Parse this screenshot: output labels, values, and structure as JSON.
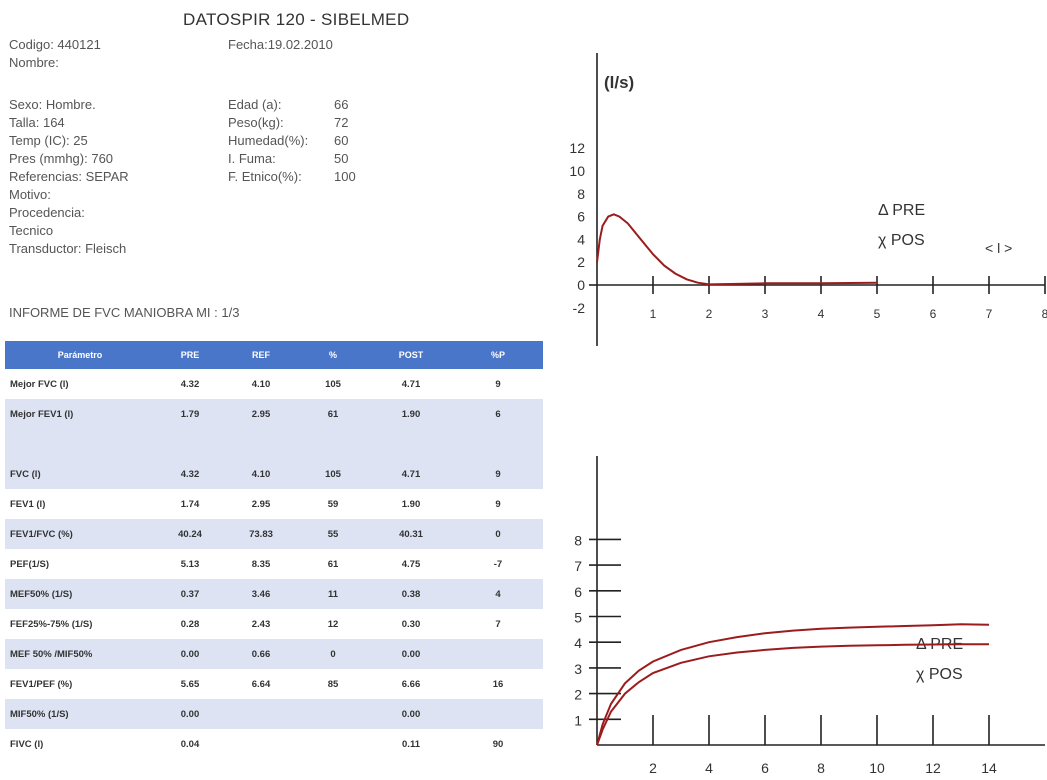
{
  "header": {
    "title": "DATOSPIR 120  -  SIBELMED",
    "codigo": "Codigo: 440121",
    "fecha": "Fecha:19.02.2010",
    "nombre": "Nombre:"
  },
  "patient_left": [
    "Sexo: Hombre.",
    "Talla: 164",
    "Temp (IC): 25",
    "Pres (mmhg): 760",
    "Referencias: SEPAR",
    "Motivo:",
    "Procedencia:",
    "Tecnico",
    "Transductor: Fleisch"
  ],
  "patient_right_labels": [
    "Edad (a):",
    "Peso(kg):",
    "Humedad(%):",
    "I. Fuma:",
    "F. Etnico(%):"
  ],
  "patient_right_values": [
    "66",
    "72",
    "60",
    "50",
    "100"
  ],
  "report_title": "INFORME DE FVC MANIOBRA MI : 1/3",
  "table": {
    "headers": [
      "Parámetro",
      "PRE",
      "REF",
      "%",
      "POST",
      "%P"
    ],
    "rows": [
      [
        "Mejor FVC (l)",
        "4.32",
        "4.10",
        "105",
        "4.71",
        "9"
      ],
      [
        "Mejor FEV1 (l)",
        "1.79",
        "2.95",
        "61",
        "1.90",
        "6"
      ],
      [
        "",
        "",
        "",
        "",
        "",
        ""
      ],
      [
        "FVC (l)",
        "4.32",
        "4.10",
        "105",
        "4.71",
        "9"
      ],
      [
        "FEV1 (l)",
        "1.74",
        "2.95",
        "59",
        "1.90",
        "9"
      ],
      [
        "FEV1/FVC (%)",
        "40.24",
        "73.83",
        "55",
        "40.31",
        "0"
      ],
      [
        "PEF(1/S)",
        "5.13",
        "8.35",
        "61",
        "4.75",
        "-7"
      ],
      [
        "MEF50% (1/S)",
        "0.37",
        "3.46",
        "11",
        "0.38",
        "4"
      ],
      [
        "FEF25%-75% (1/S)",
        "0.28",
        "2.43",
        "12",
        "0.30",
        "7"
      ],
      [
        "MEF 50% /MIF50%",
        "0.00",
        "0.66",
        "0",
        "0.00",
        ""
      ],
      [
        "FEV1/PEF (%)",
        "5.65",
        "6.64",
        "85",
        "6.66",
        "16"
      ],
      [
        "MIF50% (1/S)",
        "0.00",
        "",
        "",
        "0.00",
        ""
      ],
      [
        "FIVC (l)",
        "0.04",
        "",
        "",
        "0.11",
        "90"
      ]
    ]
  },
  "colors": {
    "table_header": "#4a76c9",
    "table_band": "#dde3f3",
    "curve": "#9b1c1c",
    "axis": "#222222"
  },
  "chart_data": [
    {
      "type": "line",
      "ylabel": "(l/s)",
      "x_unit_label": "< l >",
      "y_ticks": [
        "12",
        "10",
        "8",
        "6",
        "4",
        "2",
        "0",
        "-2"
      ],
      "x_ticks": [
        "1",
        "2",
        "3",
        "4",
        "5",
        "6",
        "7",
        "8"
      ],
      "legend": [
        "Δ PRE",
        "χ POS"
      ],
      "legend_position": "right",
      "xlim": [
        0,
        8
      ],
      "ylim": [
        -2,
        12
      ],
      "series": [
        {
          "x": [
            0,
            0.05,
            0.1,
            0.2,
            0.3,
            0.4,
            0.55,
            0.7,
            0.85,
            1.0,
            1.2,
            1.4,
            1.6,
            1.8,
            2.0,
            2.5,
            3.0,
            4.0,
            5.0
          ],
          "y": [
            2.0,
            4.0,
            5.2,
            6.0,
            6.2,
            6.0,
            5.4,
            4.5,
            3.6,
            2.7,
            1.7,
            1.0,
            0.5,
            0.2,
            0.05,
            0.1,
            0.15,
            0.15,
            0.2
          ]
        }
      ]
    },
    {
      "type": "line",
      "y_ticks": [
        "8",
        "7",
        "6",
        "5",
        "4",
        "3",
        "2",
        "1"
      ],
      "x_ticks": [
        "2",
        "4",
        "6",
        "8",
        "10",
        "12",
        "14"
      ],
      "legend": [
        "Δ PRE",
        "χ POS"
      ],
      "legend_position": "right",
      "xlim": [
        0,
        14
      ],
      "ylim": [
        0,
        8
      ],
      "series": [
        {
          "x": [
            0,
            0.2,
            0.5,
            1,
            1.5,
            2,
            3,
            4,
            5,
            6,
            7,
            8,
            9,
            10,
            11,
            12,
            13,
            14
          ],
          "y": [
            0,
            0.8,
            1.6,
            2.4,
            2.9,
            3.25,
            3.7,
            4.0,
            4.2,
            4.35,
            4.45,
            4.52,
            4.57,
            4.6,
            4.63,
            4.66,
            4.7,
            4.68
          ]
        },
        {
          "x": [
            0,
            0.2,
            0.5,
            1,
            1.5,
            2,
            3,
            4,
            5,
            6,
            7,
            8,
            9,
            10,
            11,
            12,
            13,
            14
          ],
          "y": [
            0,
            0.6,
            1.3,
            2.0,
            2.45,
            2.8,
            3.2,
            3.45,
            3.6,
            3.7,
            3.78,
            3.83,
            3.86,
            3.88,
            3.9,
            3.91,
            3.92,
            3.92
          ]
        }
      ]
    }
  ]
}
